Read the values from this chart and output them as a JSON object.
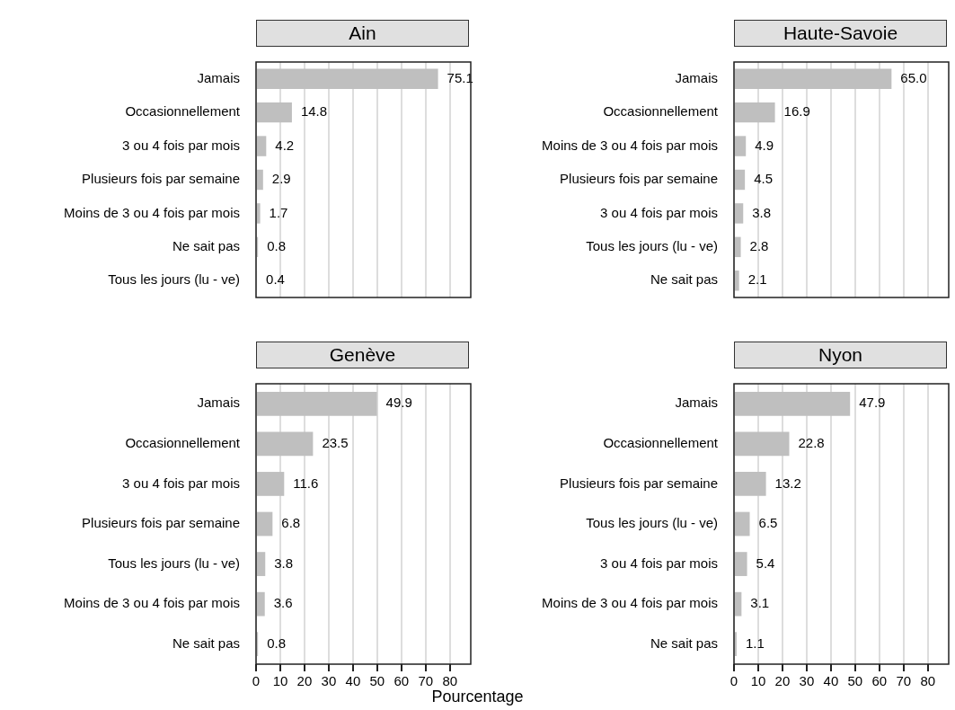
{
  "chart_data": [
    {
      "type": "bar",
      "title": "Ain",
      "orientation": "horizontal",
      "categories": [
        "Jamais",
        "Occasionnellement",
        "3 ou 4 fois par mois",
        "Plusieurs fois par semaine",
        "Moins de 3 ou 4 fois par mois",
        "Ne sait pas",
        "Tous les jours (lu - ve)"
      ],
      "values": [
        75.1,
        14.8,
        4.2,
        2.9,
        1.7,
        0.8,
        0.4
      ],
      "value_labels": [
        "75.1",
        "14.8",
        "4.2",
        "2.9",
        "1.7",
        "0.8",
        "0.4"
      ],
      "color": "#bfbfbf",
      "xlim": [
        0,
        88.6
      ],
      "xticks": [
        0,
        10,
        20,
        30,
        40,
        50,
        60,
        70,
        80
      ],
      "grid": "x",
      "tick_labels": "y"
    },
    {
      "type": "bar",
      "title": "Haute-Savoie",
      "orientation": "horizontal",
      "categories": [
        "Jamais",
        "Occasionnellement",
        "Moins de 3 ou 4 fois par mois",
        "Plusieurs fois par semaine",
        "3 ou 4 fois par mois",
        "Tous les jours (lu - ve)",
        "Ne sait pas"
      ],
      "values": [
        65.0,
        16.9,
        4.9,
        4.5,
        3.8,
        2.8,
        2.1
      ],
      "value_labels": [
        "65.0",
        "16.9",
        "4.9",
        "4.5",
        "3.8",
        "2.8",
        "2.1"
      ],
      "color": "#bfbfbf",
      "xlim": [
        0,
        88.6
      ],
      "xticks": [
        0,
        10,
        20,
        30,
        40,
        50,
        60,
        70,
        80
      ],
      "grid": "x",
      "tick_labels": "y"
    },
    {
      "type": "bar",
      "title": "Genève",
      "xlabel": "Pourcentage",
      "orientation": "horizontal",
      "categories": [
        "Jamais",
        "Occasionnellement",
        "3 ou 4 fois par mois",
        "Plusieurs fois par semaine",
        "Tous les jours (lu - ve)",
        "Moins de 3 ou 4 fois par mois",
        "Ne sait pas"
      ],
      "values": [
        49.9,
        23.5,
        11.6,
        6.8,
        3.8,
        3.6,
        0.8
      ],
      "value_labels": [
        "49.9",
        "23.5",
        "11.6",
        "6.8",
        "3.8",
        "3.6",
        "0.8"
      ],
      "color": "#bfbfbf",
      "xlim": [
        0,
        88.6
      ],
      "xticks": [
        0,
        10,
        20,
        30,
        40,
        50,
        60,
        70,
        80
      ],
      "grid": "x"
    },
    {
      "type": "bar",
      "title": "Nyon",
      "orientation": "horizontal",
      "categories": [
        "Jamais",
        "Occasionnellement",
        "Plusieurs fois par semaine",
        "Tous les jours (lu - ve)",
        "3 ou 4 fois par mois",
        "Moins de 3 ou 4 fois par mois",
        "Ne sait pas"
      ],
      "values": [
        47.9,
        22.8,
        13.2,
        6.5,
        5.4,
        3.1,
        1.1
      ],
      "value_labels": [
        "47.9",
        "22.8",
        "13.2",
        "6.5",
        "5.4",
        "3.1",
        "1.1"
      ],
      "color": "#bfbfbf",
      "xlim": [
        0,
        88.6
      ],
      "xticks": [
        0,
        10,
        20,
        30,
        40,
        50,
        60,
        70,
        80
      ],
      "grid": "x"
    }
  ]
}
